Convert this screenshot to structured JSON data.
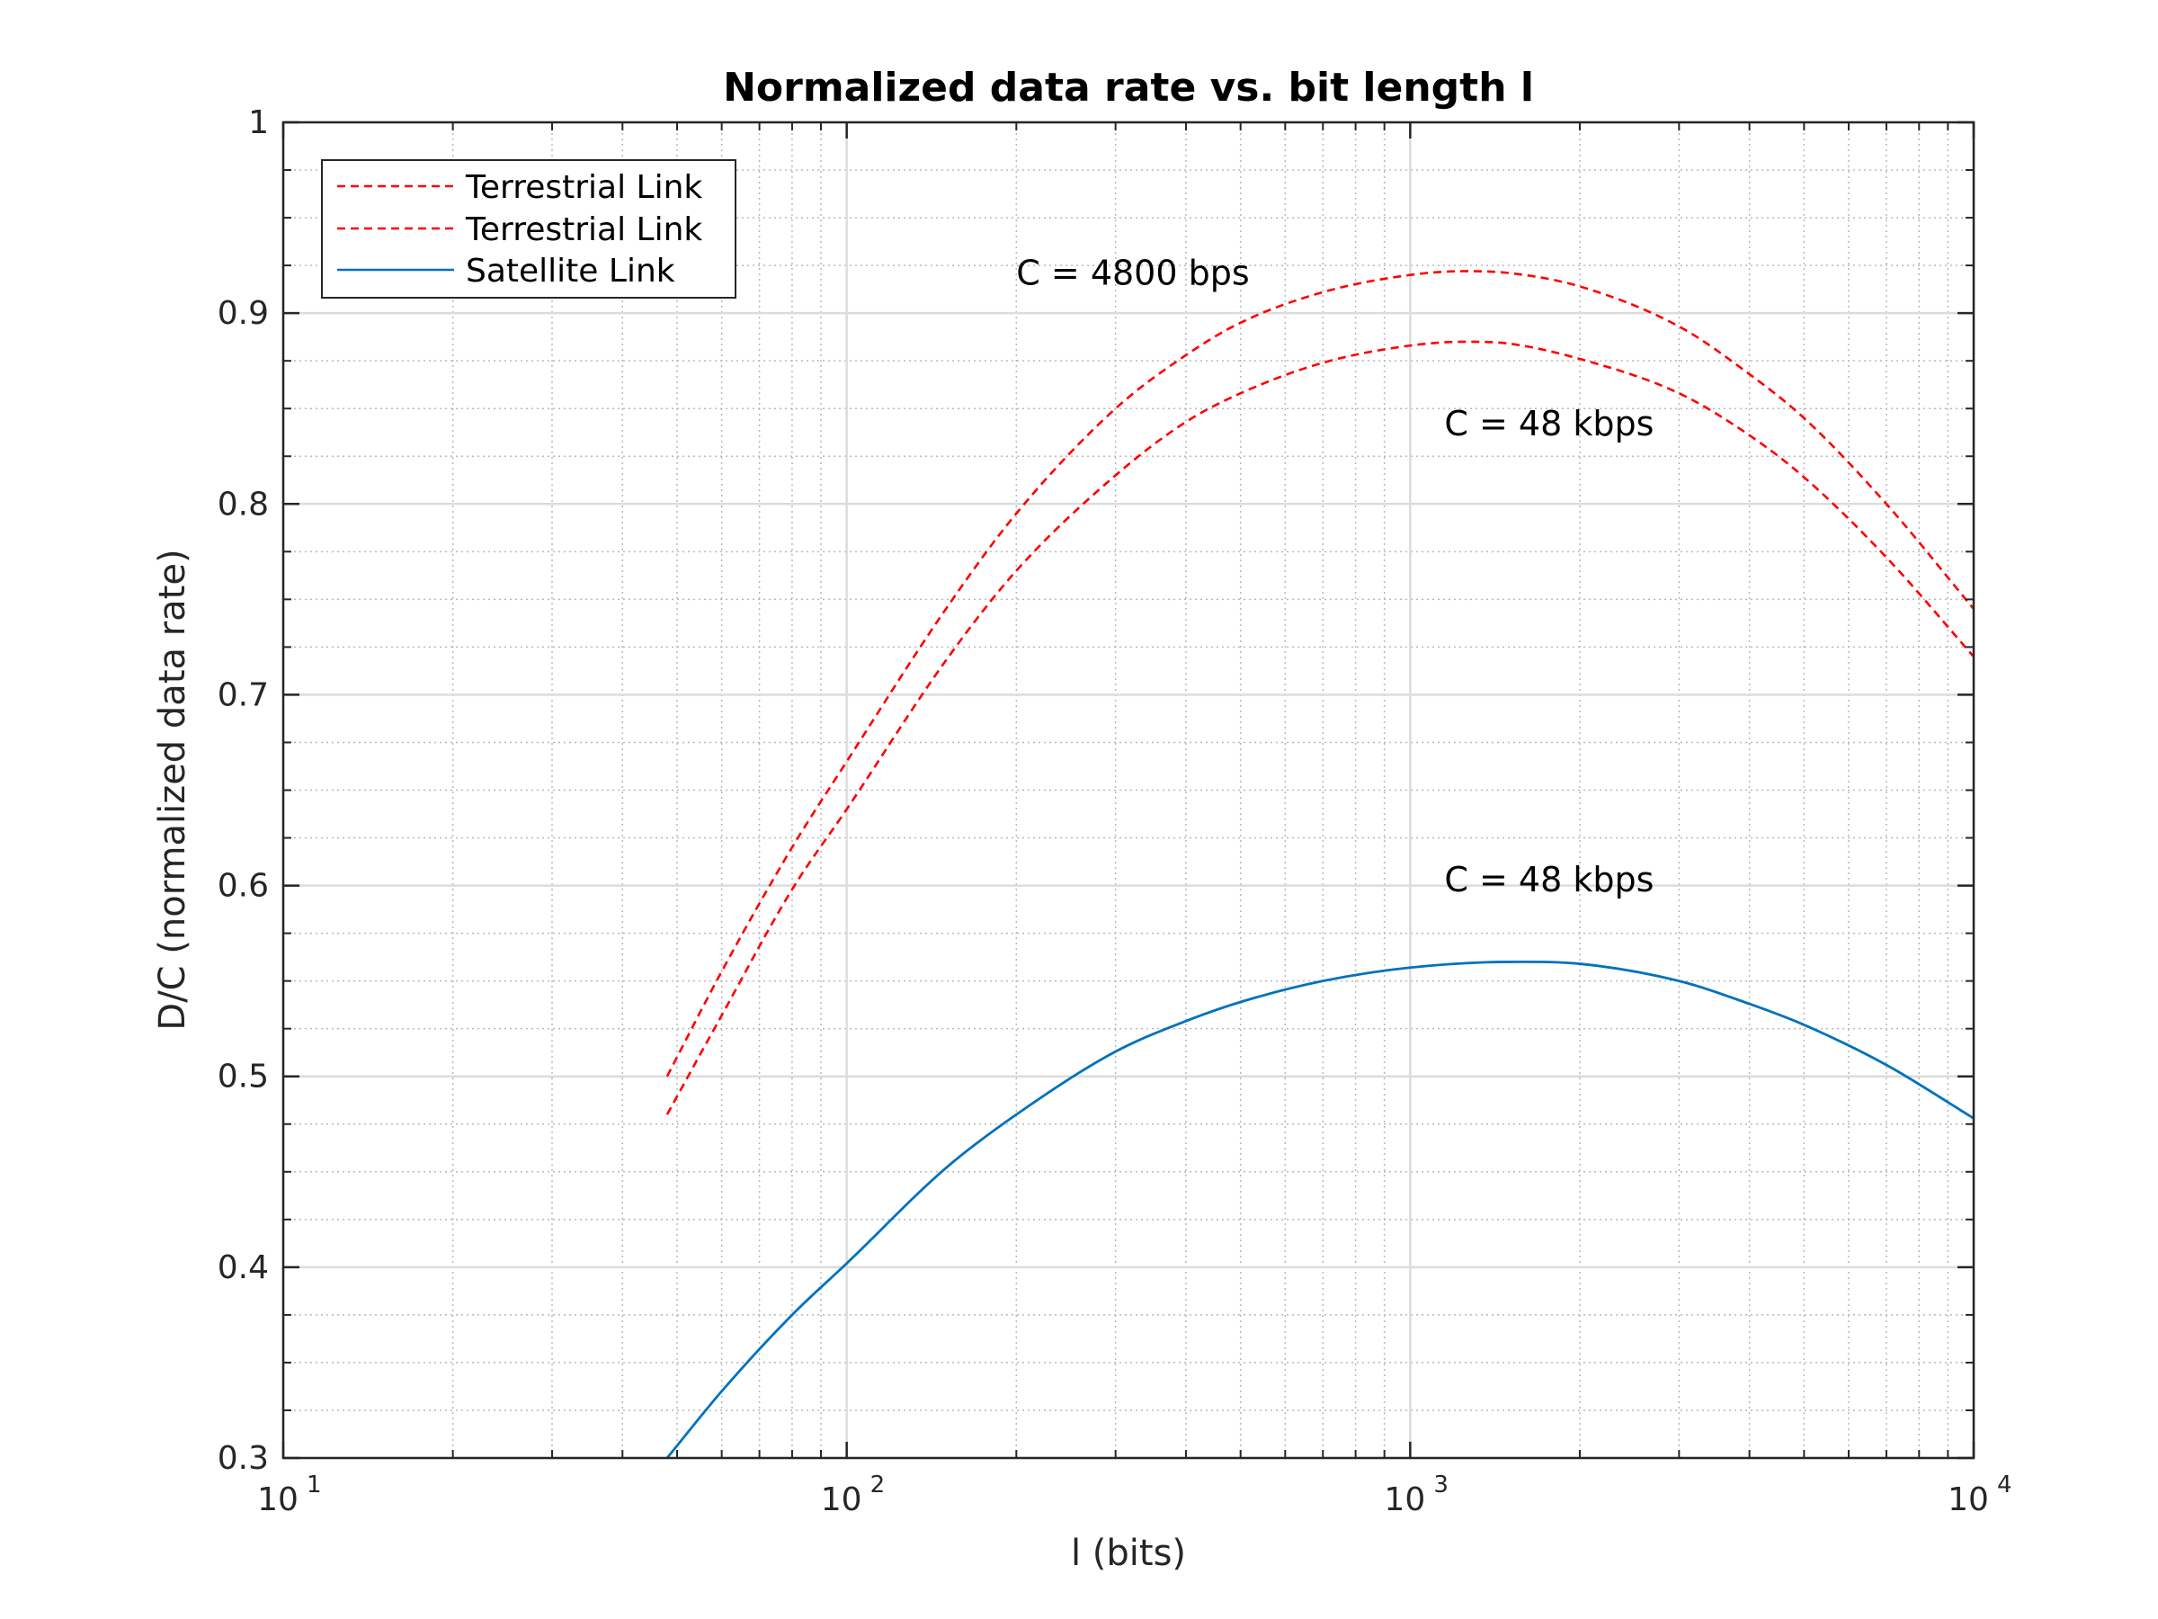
{
  "chart_data": {
    "type": "line",
    "title": "Normalized data rate vs. bit length l",
    "xlabel": "l (bits)",
    "ylabel": "D/C (normalized data rate)",
    "xscale": "log",
    "xlim": [
      10,
      10000
    ],
    "ylim": [
      0.3,
      1.0
    ],
    "grid": "major and minor",
    "legend_position": "top-left",
    "x_ticks": [
      {
        "base": "10",
        "exp": "1",
        "value": 10
      },
      {
        "base": "10",
        "exp": "2",
        "value": 100
      },
      {
        "base": "10",
        "exp": "3",
        "value": 1000
      },
      {
        "base": "10",
        "exp": "4",
        "value": 10000
      }
    ],
    "y_ticks": [
      "0.3",
      "0.4",
      "0.5",
      "0.6",
      "0.7",
      "0.8",
      "0.9",
      "1"
    ],
    "series": [
      {
        "name": "Terrestrial Link",
        "color": "#ff0000",
        "style": "dashed",
        "x": [
          48,
          60,
          80,
          100,
          150,
          200,
          300,
          400,
          500,
          700,
          1000,
          1250,
          1500,
          2000,
          3000,
          4000,
          5000,
          7000,
          10000
        ],
        "y": [
          0.5,
          0.555,
          0.62,
          0.665,
          0.745,
          0.795,
          0.85,
          0.878,
          0.895,
          0.911,
          0.92,
          0.922,
          0.921,
          0.914,
          0.893,
          0.868,
          0.845,
          0.8,
          0.745
        ]
      },
      {
        "name": "Terrestrial Link",
        "color": "#ff0000",
        "style": "dashed",
        "x": [
          48,
          60,
          80,
          100,
          150,
          200,
          300,
          400,
          500,
          700,
          1000,
          1250,
          1500,
          2000,
          3000,
          4000,
          5000,
          7000,
          10000
        ],
        "y": [
          0.48,
          0.532,
          0.598,
          0.64,
          0.718,
          0.765,
          0.815,
          0.843,
          0.858,
          0.874,
          0.883,
          0.885,
          0.884,
          0.876,
          0.858,
          0.836,
          0.814,
          0.772,
          0.72
        ]
      },
      {
        "name": "Satellite Link",
        "color": "#0072bd",
        "style": "solid",
        "x": [
          48,
          60,
          80,
          100,
          150,
          200,
          300,
          400,
          500,
          700,
          1000,
          1500,
          2000,
          3000,
          4000,
          5000,
          7000,
          10000
        ],
        "y": [
          0.3,
          0.335,
          0.375,
          0.402,
          0.452,
          0.48,
          0.513,
          0.529,
          0.539,
          0.55,
          0.557,
          0.56,
          0.559,
          0.55,
          0.538,
          0.527,
          0.506,
          0.478
        ]
      }
    ],
    "annotations": [
      {
        "text": "C = 4800 bps",
        "x": 200,
        "y": 0.915
      },
      {
        "text": "C = 48 kbps",
        "x": 1150,
        "y": 0.836
      },
      {
        "text": "C = 48 kbps",
        "x": 1150,
        "y": 0.597
      }
    ]
  }
}
